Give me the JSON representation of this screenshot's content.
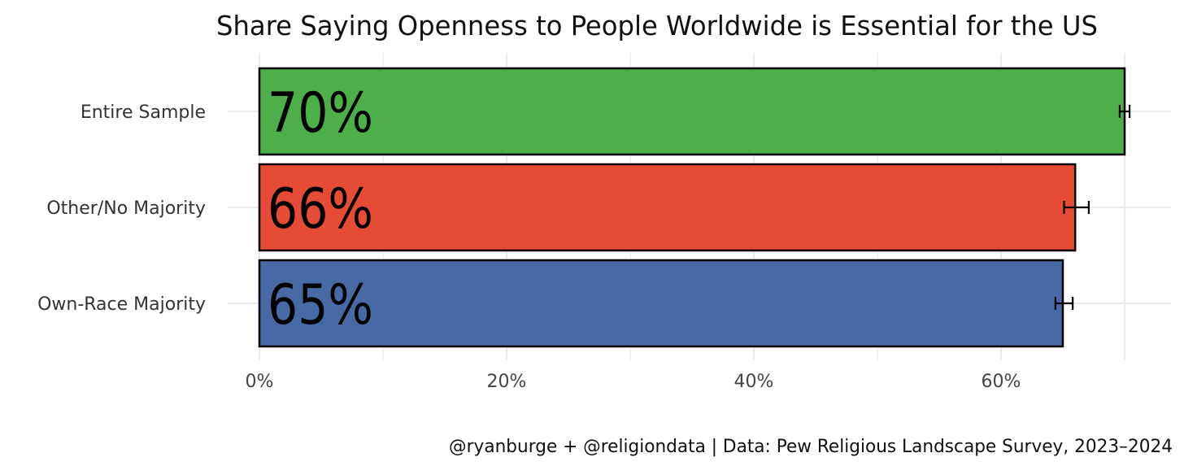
{
  "chart_data": {
    "type": "bar",
    "orientation": "horizontal",
    "title": "Share Saying Openness to People Worldwide is Essential for the US",
    "caption": "@ryanburge + @religiondata | Data: Pew Religious Landscape Survey, 2023–2024",
    "categories": [
      "Entire Sample",
      "Other/No Majority",
      "Own-Race Majority"
    ],
    "values": [
      70,
      66,
      65
    ],
    "data_labels": [
      "70%",
      "66%",
      "65%"
    ],
    "error_bars": [
      [
        69.6,
        70.4
      ],
      [
        65.1,
        67.1
      ],
      [
        64.4,
        65.8
      ]
    ],
    "colors": [
      "#4daf4a",
      "#e64b35",
      "#4769a6"
    ],
    "xlim": [
      0,
      70
    ],
    "xticks": [
      0,
      20,
      40,
      60
    ],
    "xtick_labels": [
      "0%",
      "20%",
      "40%",
      "60%"
    ],
    "xlabel": "",
    "ylabel": "",
    "grid": true,
    "legend": "none"
  }
}
